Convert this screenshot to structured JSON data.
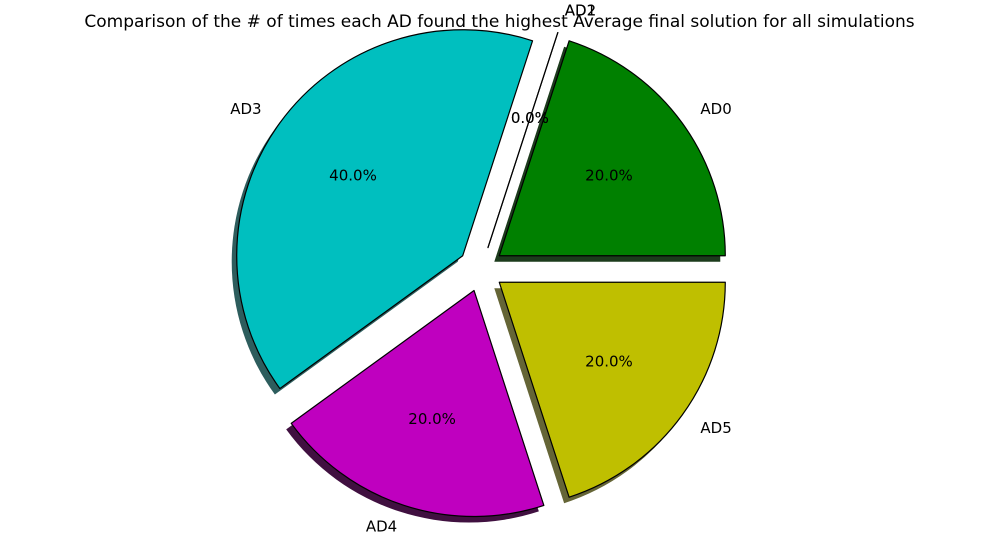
{
  "chart_data": {
    "type": "pie",
    "title": "Comparison of the # of times each AD found the highest Average final solution for all simulations",
    "slices": [
      {
        "label": "AD0",
        "value": 1,
        "percent_label": "20.0%",
        "color": "#008000",
        "explode": 0.1
      },
      {
        "label": "AD1",
        "value": 0,
        "percent_label": "0.0%",
        "color": "#0000ff",
        "explode": 0.1
      },
      {
        "label": "AD2",
        "value": 0,
        "percent_label": "0.0%",
        "color": "#ff0000",
        "explode": 0.1
      },
      {
        "label": "AD3",
        "value": 2,
        "percent_label": "40.0%",
        "color": "#00bfbf",
        "explode": 0.1
      },
      {
        "label": "AD4",
        "value": 1,
        "percent_label": "20.0%",
        "color": "#bf00bf",
        "explode": 0.1
      },
      {
        "label": "AD5",
        "value": 1,
        "percent_label": "20.0%",
        "color": "#bfbf00",
        "explode": 0.1
      }
    ],
    "start_angle_deg": 0,
    "direction": "counterclockwise",
    "shadow": true,
    "edge_color": "#000000"
  }
}
